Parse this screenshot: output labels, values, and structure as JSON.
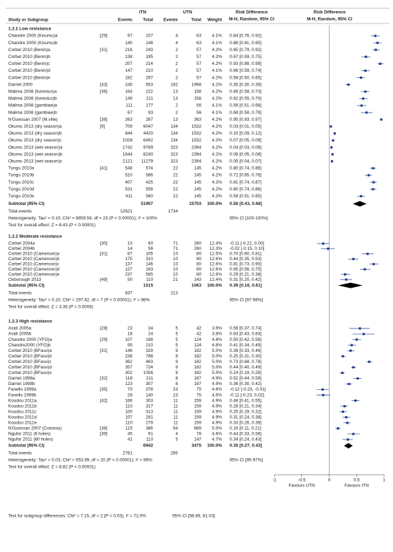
{
  "header": {
    "study": "Study or Subgroup",
    "g1": "ITN",
    "g2": "UTN",
    "events1": "Events",
    "total1": "Total",
    "events2": "Events",
    "total2": "Total",
    "weight": "Weight",
    "rd1": "Risk Difference",
    "rd1_sub": "M-H, Random, 95% CI",
    "rd2": "Risk Difference",
    "rd2_sub": "M-H, Random, 95% CI"
  },
  "groups": [
    {
      "title": "1.2.1 Low resistance",
      "rows": [
        {
          "study": "Chandre 2000 (Kisumu)a",
          "ref": "[29]",
          "e1": 97,
          "n1": 107,
          "e2": 4,
          "n2": 63,
          "weight": "4.1%",
          "ci": "0.84 [0.76, 0.92]",
          "rd": 0.84,
          "lo": 0.76,
          "hi": 0.92
        },
        {
          "study": "Chandre 2000 (Kisumu)b",
          "e1": 140,
          "n1": 148,
          "e2": 4,
          "n2": 63,
          "weight": "4.1%",
          "ci": "0.88 [0.81, 0.95]",
          "rd": 0.88,
          "lo": 0.81,
          "hi": 0.95
        },
        {
          "study": "Corbel 2010 (Benin)a",
          "ref": "[31]",
          "e1": 216,
          "n1": 243,
          "e2": 2,
          "n2": 57,
          "weight": "4.2%",
          "ci": "0.85 [0.79, 0.92]",
          "rd": 0.85,
          "lo": 0.79,
          "hi": 0.92
        },
        {
          "study": "Corbel 2010 (Benin)b",
          "e1": 138,
          "n1": 195,
          "e2": 2,
          "n2": 57,
          "weight": "4.2%",
          "ci": "0.67 [0.59, 0.75]",
          "rd": 0.67,
          "lo": 0.59,
          "hi": 0.75
        },
        {
          "study": "Corbel 2010 (Benin)c",
          "e1": 207,
          "n1": 214,
          "e2": 2,
          "n2": 57,
          "weight": "4.2%",
          "ci": "0.93 [0.88, 0.99]",
          "rd": 0.93,
          "lo": 0.88,
          "hi": 0.99
        },
        {
          "study": "Corbel 2010 (Benin)d",
          "e1": 147,
          "n1": 210,
          "e2": 2,
          "n2": 57,
          "weight": "4.1%",
          "ci": "0.66 [0.59, 0.74]",
          "rd": 0.66,
          "lo": 0.59,
          "hi": 0.74
        },
        {
          "study": "Corbel 2010 (Benin)e",
          "e1": 182,
          "n1": 297,
          "e2": 2,
          "n2": 57,
          "weight": "4.2%",
          "ci": "0.58 [0.50, 0.65]",
          "rd": 0.58,
          "lo": 0.5,
          "hi": 0.65
        },
        {
          "study": "Darriet 2000",
          "ref": "[33]",
          "e1": 245,
          "n1": 553,
          "e2": 192,
          "n2": 1998,
          "weight": "4.2%",
          "ci": "0.35 [0.30, 0.39]",
          "rd": 0.35,
          "lo": 0.3,
          "hi": 0.39
        },
        {
          "study": "Malima 2008 (funestus)a",
          "ref": "[36]",
          "e1": 164,
          "n1": 222,
          "e2": 13,
          "n2": 158,
          "weight": "4.2%",
          "ci": "0.66 [0.58, 0.73]",
          "rd": 0.66,
          "lo": 0.58,
          "hi": 0.73
        },
        {
          "study": "Malima 2008 (funestus)b",
          "e1": 149,
          "n1": 211,
          "e2": 13,
          "n2": 158,
          "weight": "4.2%",
          "ci": "0.62 [0.55, 0.70]",
          "rd": 0.62,
          "lo": 0.55,
          "hi": 0.7
        },
        {
          "study": "Malima 2008 (gambiae)a",
          "e1": 111,
          "n1": 177,
          "e2": 2,
          "n2": 56,
          "weight": "4.1%",
          "ci": "0.59 [0.51, 0.68]",
          "rd": 0.59,
          "lo": 0.51,
          "hi": 0.68
        },
        {
          "study": "Malima 2008 (gambiae)b",
          "e1": 67,
          "n1": 93,
          "e2": 2,
          "n2": 56,
          "weight": "4.1%",
          "ci": "0.68 [0.58, 0.79]",
          "rd": 0.68,
          "lo": 0.58,
          "hi": 0.79
        },
        {
          "study": "N'Guessan 2007 (M.ville)",
          "ref": "[38]",
          "e1": 263,
          "n1": 267,
          "e2": 13,
          "n2": 363,
          "weight": "4.2%",
          "ci": "0.95 [0.93, 0.97]",
          "rd": 0.95,
          "lo": 0.93,
          "hi": 0.97
        },
        {
          "study": "Okumu 2013 (dry season)a",
          "ref": "[9]",
          "e1": 709,
          "n1": 6047,
          "e2": 134,
          "n2": 1532,
          "weight": "4.2%",
          "ci": "0.03 [0.01, 0.05]",
          "rd": 0.03,
          "lo": 0.01,
          "hi": 0.05
        },
        {
          "study": "Okumu 2013 (dry season)b",
          "e1": 844,
          "n1": 4420,
          "e2": 134,
          "n2": 1532,
          "weight": "4.2%",
          "ci": "0.10 [0.09, 0.12]",
          "rd": 0.1,
          "lo": 0.09,
          "hi": 0.12
        },
        {
          "study": "Okumu 2013 (dry season)c",
          "e1": 1028,
          "n1": 6492,
          "e2": 134,
          "n2": 1532,
          "weight": "4.2%",
          "ci": "0.07 [0.05, 0.09]",
          "rd": 0.07,
          "lo": 0.05,
          "hi": 0.09
        },
        {
          "study": "Okumu 2013 (wet season)a",
          "e1": 1742,
          "n1": 9789,
          "e2": 323,
          "n2": 2394,
          "weight": "4.2%",
          "ci": "0.04 [0.03, 0.06]",
          "rd": 0.04,
          "lo": 0.03,
          "hi": 0.06
        },
        {
          "study": "Okumu 2013 (wet season)b",
          "e1": 1644,
          "n1": 8240,
          "e2": 323,
          "n2": 2394,
          "weight": "4.2%",
          "ci": "0.06 [0.05, 0.08]",
          "rd": 0.06,
          "lo": 0.05,
          "hi": 0.08
        },
        {
          "study": "Okumu 2013 (wet season)c",
          "e1": 2121,
          "n1": 11279,
          "e2": 323,
          "n2": 2394,
          "weight": "4.2%",
          "ci": "0.05 [0.04, 0.07]",
          "rd": 0.05,
          "lo": 0.04,
          "hi": 0.07
        },
        {
          "study": "Tungu 2010a",
          "ref": "[41]",
          "e1": 548,
          "n1": 574,
          "e2": 22,
          "n2": 145,
          "weight": "4.2%",
          "ci": "0.80 [0.74, 0.86]",
          "rd": 0.8,
          "lo": 0.74,
          "hi": 0.86
        },
        {
          "study": "Tungu 2010b",
          "e1": 510,
          "n1": 586,
          "e2": 22,
          "n2": 145,
          "weight": "4.2%",
          "ci": "0.72 [0.65, 0.78]",
          "rd": 0.72,
          "lo": 0.65,
          "hi": 0.78
        },
        {
          "study": "Tungu 2010c",
          "e1": 407,
          "n1": 425,
          "e2": 22,
          "n2": 145,
          "weight": "4.2%",
          "ci": "0.81 [0.74, 0.87]",
          "rd": 0.81,
          "lo": 0.74,
          "hi": 0.87
        },
        {
          "study": "Tungu 2010d",
          "e1": 531,
          "n1": 558,
          "e2": 22,
          "n2": 145,
          "weight": "4.2%",
          "ci": "0.80 [0.74, 0.86]",
          "rd": 0.8,
          "lo": 0.74,
          "hi": 0.86
        },
        {
          "study": "Tungu 2010e",
          "e1": 411,
          "n1": 560,
          "e2": 22,
          "n2": 145,
          "weight": "4.2%",
          "ci": "0.58 [0.51, 0.65]",
          "rd": 0.58,
          "lo": 0.51,
          "hi": 0.65
        }
      ],
      "subtotal": {
        "label": "Subtotal (95% CI)",
        "n1": 51907,
        "n2": 15703,
        "weight": "100.0%",
        "ci": "0.56 [0.43, 0.68]",
        "rd": 0.56,
        "lo": 0.43,
        "hi": 0.68
      },
      "total_events": {
        "label": "Total events",
        "e1": 12621,
        "e2": 1734
      },
      "heterogeneity": "Heterogeneity: Tau² = 0.10; Chi² = 9859.56, df = 23 (P < 0.00001); I² = 100%",
      "het_ci": "95% CI [100-100%]",
      "overall": "Test for overall effect: Z = 8.43 (P < 0.00001)"
    },
    {
      "title": "1.2.2 Moderate resistance",
      "rows": [
        {
          "study": "Corbel 2004a",
          "ref": "[30]",
          "e1": 10,
          "n1": 60,
          "e2": 71,
          "n2": 260,
          "weight": "12.4%",
          "ci": "-0.11 [-0.22, 0.00]",
          "rd": -0.11,
          "lo": -0.22,
          "hi": 0.0
        },
        {
          "study": "Corbel 2004b",
          "e1": 14,
          "n1": 56,
          "e2": 71,
          "n2": 260,
          "weight": "12.3%",
          "ci": "-0.02 [-0.15, 0.10]",
          "rd": -0.02,
          "lo": -0.15,
          "hi": 0.1
        },
        {
          "study": "Corbel 2010 (Cameroon)a",
          "ref": "[31]",
          "e1": 87,
          "n1": 105,
          "e2": 10,
          "n2": 80,
          "weight": "12.5%",
          "ci": "0.70 [0.60, 0.81]",
          "rd": 0.7,
          "lo": 0.6,
          "hi": 0.81
        },
        {
          "study": "Corbel 2010 (Cameroon)b",
          "e1": 175,
          "n1": 310,
          "e2": 10,
          "n2": 80,
          "weight": "12.6%",
          "ci": "0.44 [0.35, 0.53]",
          "rd": 0.44,
          "lo": 0.35,
          "hi": 0.53
        },
        {
          "study": "Corbel 2010 (Cameroon)c",
          "e1": 137,
          "n1": 146,
          "e2": 10,
          "n2": 80,
          "weight": "12.6%",
          "ci": "0.81 [0.73, 0.90]",
          "rd": 0.81,
          "lo": 0.73,
          "hi": 0.9
        },
        {
          "study": "Corbel 2010 (Cameroon)d",
          "e1": 127,
          "n1": 163,
          "e2": 10,
          "n2": 80,
          "weight": "12.6%",
          "ci": "0.65 [0.56, 0.75]",
          "rd": 0.65,
          "lo": 0.56,
          "hi": 0.75
        },
        {
          "study": "Corbel 2010 (Cameroon)e",
          "e1": 237,
          "n1": 565,
          "e2": 10,
          "n2": 80,
          "weight": "12.6%",
          "ci": "0.29 [0.21, 0.38]",
          "rd": 0.29,
          "lo": 0.21,
          "hi": 0.38
        },
        {
          "study": "Oxborough 2013",
          "ref": "[49]",
          "e1": 50,
          "n1": 110,
          "e2": 21,
          "n2": 143,
          "weight": "12.4%",
          "ci": "0.31 [0.20, 0.42]",
          "rd": 0.31,
          "lo": 0.2,
          "hi": 0.42
        }
      ],
      "subtotal": {
        "label": "Subtotal (95% CI)",
        "n1": 1515,
        "n2": 1063,
        "weight": "100.0%",
        "ci": "0.39 [0.16, 0.61]",
        "rd": 0.39,
        "lo": 0.16,
        "hi": 0.61
      },
      "total_events": {
        "label": "Total events",
        "e1": 837,
        "e2": 213
      },
      "heterogeneity": "Heterogeneity: Tau² = 0.10; Chi² = 297.62, df = 7 (P < 0.00001); I² = 98%",
      "het_ci": "95% CI [97-98%]",
      "overall": "Test for overall effect: Z = 3.36 (P = 0.0008)"
    },
    {
      "title": "1.2.3 High resistance",
      "rows": [
        {
          "study": "Asidi 2005a",
          "ref": "[28]",
          "e1": 23,
          "n1": 34,
          "e2": 5,
          "n2": 42,
          "weight": "3.9%",
          "ci": "0.56 [0.37, 0.74]",
          "rd": 0.56,
          "lo": 0.37,
          "hi": 0.74
        },
        {
          "study": "Asidi 2005b",
          "e1": 18,
          "n1": 24,
          "e2": 5,
          "n2": 42,
          "weight": "3.8%",
          "ci": "0.63 [0.43, 0.83]",
          "rd": 0.63,
          "lo": 0.43,
          "hi": 0.83
        },
        {
          "study": "Chandre 2000 (YFO)a",
          "ref": "[29]",
          "e1": 107,
          "n1": 198,
          "e2": 5,
          "n2": 124,
          "weight": "4.8%",
          "ci": "0.50 [0.42, 0.58]",
          "rd": 0.5,
          "lo": 0.42,
          "hi": 0.58
        },
        {
          "study": "Chandre2000 (YFO)b",
          "e1": 95,
          "n1": 210,
          "e2": 5,
          "n2": 124,
          "weight": "4.8%",
          "ci": "0.41 [0.34, 0.49]",
          "rd": 0.41,
          "lo": 0.34,
          "hi": 0.49
        },
        {
          "study": "Corbel 2010 (BFaso)a",
          "ref": "[31]",
          "e1": 146,
          "n1": 329,
          "e2": 9,
          "n2": 182,
          "weight": "5.0%",
          "ci": "0.39 [0.33, 0.46]",
          "rd": 0.39,
          "lo": 0.33,
          "hi": 0.46
        },
        {
          "study": "Corbel 2010 (BFaso)b",
          "e1": 238,
          "n1": 788,
          "e2": 9,
          "n2": 182,
          "weight": "5.0%",
          "ci": "0.25 [0.21, 0.30]",
          "rd": 0.25,
          "lo": 0.21,
          "hi": 0.3
        },
        {
          "study": "Corbel 2010 (BFaso)c",
          "e1": 362,
          "n1": 463,
          "e2": 9,
          "n2": 182,
          "weight": "5.0%",
          "ci": "0.73 [0.68, 0.78]",
          "rd": 0.73,
          "lo": 0.68,
          "hi": 0.78
        },
        {
          "study": "Corbel 2010 (BFaso)d",
          "e1": 357,
          "n1": 724,
          "e2": 9,
          "n2": 182,
          "weight": "5.0%",
          "ci": "0.44 [0.40, 0.49]",
          "rd": 0.44,
          "lo": 0.4,
          "hi": 0.49
        },
        {
          "study": "Corbel 2010 (BFaso)e",
          "e1": 302,
          "n1": 1056,
          "e2": 9,
          "n2": 182,
          "weight": "5.0%",
          "ci": "0.24 [0.19, 0.28]",
          "rd": 0.24,
          "lo": 0.19,
          "hi": 0.28
        },
        {
          "study": "Darriet 1998a",
          "ref": "[32]",
          "e1": 118,
          "n1": 211,
          "e2": 8,
          "n2": 187,
          "weight": "4.9%",
          "ci": "0.52 [0.44, 0.59]",
          "rd": 0.52,
          "lo": 0.44,
          "hi": 0.59
        },
        {
          "study": "Darriet 1998b",
          "e1": 123,
          "n1": 307,
          "e2": 8,
          "n2": 187,
          "weight": "4.9%",
          "ci": "0.36 [0.30, 0.42]",
          "rd": 0.36,
          "lo": 0.3,
          "hi": 0.42
        },
        {
          "study": "Fanello 1999a",
          "ref": "[35]",
          "e1": 70,
          "n1": 378,
          "e2": 23,
          "n2": 75,
          "weight": "4.6%",
          "ci": "-0.12 [-0.23, -0.01]",
          "rd": -0.12,
          "lo": -0.23,
          "hi": -0.01
        },
        {
          "study": "Fanello 1999b",
          "e1": 28,
          "n1": 140,
          "e2": 23,
          "n2": 75,
          "weight": "4.5%",
          "ci": "-0.11 [-0.23, 0.02]",
          "rd": -0.11,
          "lo": -0.23,
          "hi": 0.02
        },
        {
          "study": "Koudou 2011a",
          "ref": "[42]",
          "e1": 166,
          "n1": 303,
          "e2": 11,
          "n2": 159,
          "weight": "4.9%",
          "ci": "0.48 [0.41, 0.55]",
          "rd": 0.48,
          "lo": 0.41,
          "hi": 0.55
        },
        {
          "study": "Koudou 2011b",
          "e1": 110,
          "n1": 317,
          "e2": 11,
          "n2": 159,
          "weight": "4.9%",
          "ci": "0.28 [0.21, 0.34]",
          "rd": 0.28,
          "lo": 0.21,
          "hi": 0.34
        },
        {
          "study": "Koudou 2011c",
          "e1": 100,
          "n1": 313,
          "e2": 11,
          "n2": 159,
          "weight": "4.9%",
          "ci": "0.25 [0.19, 0.32]",
          "rd": 0.25,
          "lo": 0.19,
          "hi": 0.32
        },
        {
          "study": "Koudou 2011d",
          "e1": 107,
          "n1": 281,
          "e2": 11,
          "n2": 159,
          "weight": "4.9%",
          "ci": "0.31 [0.24, 0.38]",
          "rd": 0.31,
          "lo": 0.24,
          "hi": 0.38
        },
        {
          "study": "Koudou 2011e",
          "e1": 110,
          "n1": 279,
          "e2": 11,
          "n2": 159,
          "weight": "4.9%",
          "ci": "0.33 [0.26, 0.39]",
          "rd": 0.33,
          "lo": 0.26,
          "hi": 0.39
        },
        {
          "study": "N'Guessan 2007 (Cotonou)",
          "ref": "[38]",
          "e1": 115,
          "n1": 386,
          "e2": 94,
          "n2": 689,
          "weight": "5.0%",
          "ci": "0.16 [0.11, 0.21]",
          "rd": 0.16,
          "lo": 0.11,
          "hi": 0.21
        },
        {
          "study": "Ngufor 2011 (6 holes)",
          "ref": "[39]",
          "e1": 45,
          "n1": 91,
          "e2": 4,
          "n2": 78,
          "weight": "4.6%",
          "ci": "0.44 [0.33, 0.56]",
          "rd": 0.44,
          "lo": 0.33,
          "hi": 0.56
        },
        {
          "study": "Ngufor 2011 (80 holes)",
          "e1": 41,
          "n1": 110,
          "e2": 5,
          "n2": 147,
          "weight": "4.7%",
          "ci": "0.34 [0.24, 0.43]",
          "rd": 0.34,
          "lo": 0.24,
          "hi": 0.43
        }
      ],
      "subtotal": {
        "label": "Subtotal (95% CI)",
        "n1": 6942,
        "n2": 3475,
        "weight": "100.0%",
        "ci": "0.35 [0.27, 0.43]",
        "rd": 0.35,
        "lo": 0.27,
        "hi": 0.43
      },
      "total_events": {
        "label": "Total events",
        "e1": 2781,
        "e2": 285
      },
      "heterogeneity": "Heterogeneity: Tau² = 0.03; Chi² = 553.99, df = 20 (P < 0.00001); I² = 96%",
      "het_ci": "95% CI [95-97%]",
      "overall": "Test for overall effect: Z = 8.82 (P < 0.00001)"
    }
  ],
  "axis": {
    "xlim": [
      -1,
      1
    ],
    "xticks": [
      -1,
      -0.5,
      0,
      0.5,
      1
    ],
    "left_label": "Favours UTN",
    "right_label": "Favours ITN"
  },
  "footer": {
    "text": "Test for subgroup differences: Chi² = 7.15, df = 2 (P = 0.03), I² = 72.0%",
    "ci": "95% CI [58.68, 81.03]"
  }
}
